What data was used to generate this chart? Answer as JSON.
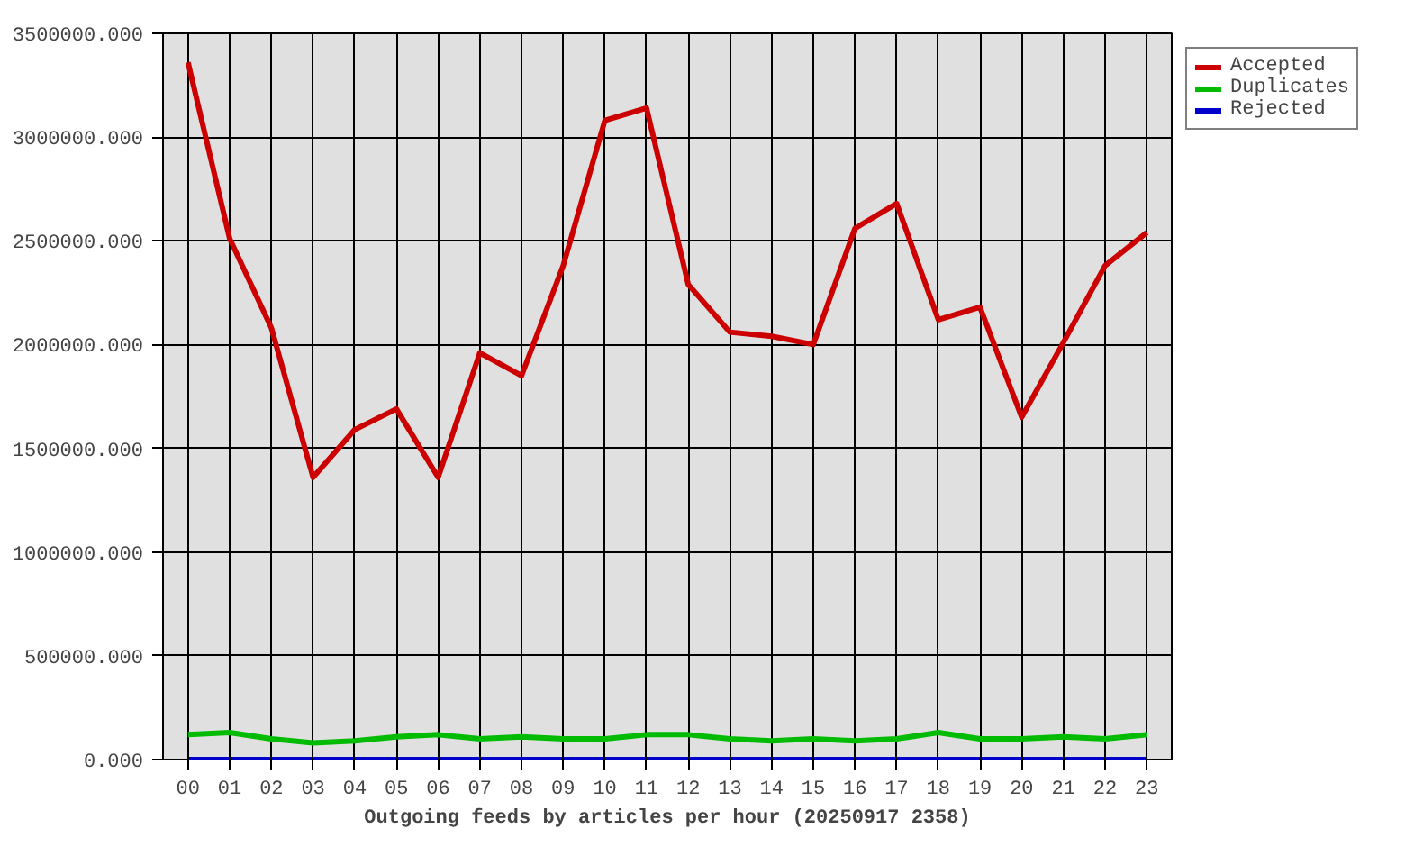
{
  "chart_data": {
    "type": "line",
    "xlabel": "Outgoing feeds by articles per hour (20250917 2358)",
    "categories": [
      "00",
      "01",
      "02",
      "03",
      "04",
      "05",
      "06",
      "07",
      "08",
      "09",
      "10",
      "11",
      "12",
      "13",
      "14",
      "15",
      "16",
      "17",
      "18",
      "19",
      "20",
      "21",
      "22",
      "23"
    ],
    "series": [
      {
        "name": "Accepted",
        "color": "#cc0000",
        "values": [
          3360000,
          2510000,
          2080000,
          1360000,
          1590000,
          1690000,
          1360000,
          1960000,
          1850000,
          2380000,
          3080000,
          3140000,
          2290000,
          2060000,
          2040000,
          2000000,
          2560000,
          2680000,
          2120000,
          2180000,
          1650000,
          2010000,
          2380000,
          2540000
        ]
      },
      {
        "name": "Duplicates",
        "color": "#00bb00",
        "values": [
          120000,
          130000,
          100000,
          80000,
          90000,
          110000,
          120000,
          100000,
          110000,
          100000,
          100000,
          120000,
          120000,
          100000,
          90000,
          100000,
          90000,
          100000,
          130000,
          100000,
          100000,
          110000,
          100000,
          120000
        ]
      },
      {
        "name": "Rejected",
        "color": "#0000cc",
        "values": [
          0,
          0,
          0,
          0,
          0,
          0,
          0,
          0,
          0,
          0,
          0,
          0,
          0,
          0,
          0,
          0,
          0,
          0,
          0,
          0,
          0,
          0,
          0,
          0
        ]
      }
    ],
    "ylim": [
      0,
      3500000
    ],
    "yticks": [
      {
        "value": 0,
        "label": "0.000"
      },
      {
        "value": 500000,
        "label": "500000.000"
      },
      {
        "value": 1000000,
        "label": "1000000.000"
      },
      {
        "value": 1500000,
        "label": "1500000.000"
      },
      {
        "value": 2000000,
        "label": "2000000.000"
      },
      {
        "value": 2500000,
        "label": "2500000.000"
      },
      {
        "value": 3000000,
        "label": "3000000.000"
      },
      {
        "value": 3500000,
        "label": "3500000.000"
      }
    ],
    "grid": true,
    "legend": "top right",
    "line_style": "solid"
  }
}
